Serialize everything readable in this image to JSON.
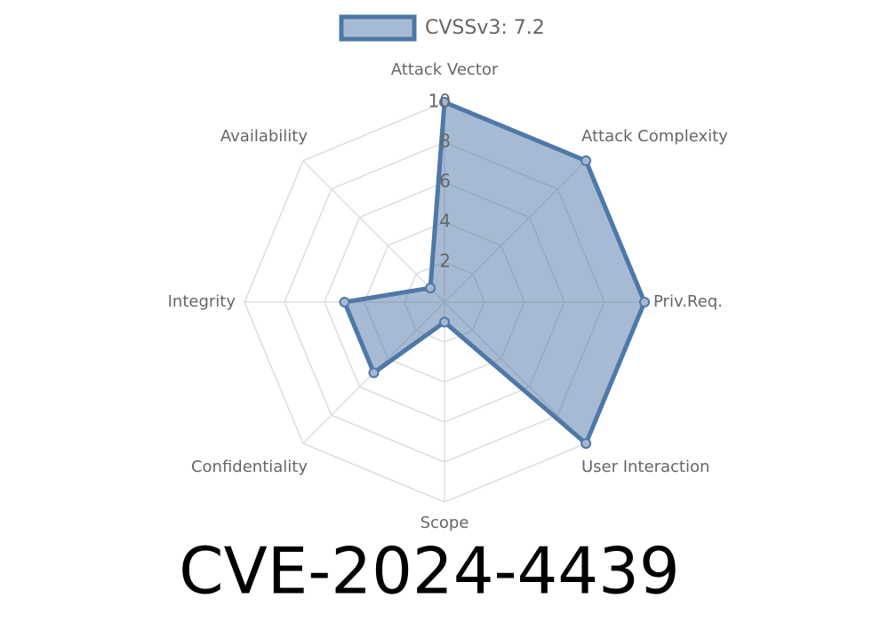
{
  "chart_data": {
    "type": "radar",
    "title": "CVE-2024-4439",
    "categories": [
      "Attack Vector",
      "Attack Complexity",
      "Priv.Req.",
      "User Interaction",
      "Scope",
      "Confidentiality",
      "Integrity",
      "Availability"
    ],
    "series": [
      {
        "name": "CVSSv3: 7.2",
        "color": "#4e78a8",
        "values": [
          10,
          10,
          10,
          10,
          1,
          5,
          5,
          1
        ]
      }
    ],
    "rlim": [
      0,
      10
    ],
    "rticks": [
      2,
      4,
      6,
      8,
      10
    ],
    "grid": true,
    "legend": "top"
  }
}
